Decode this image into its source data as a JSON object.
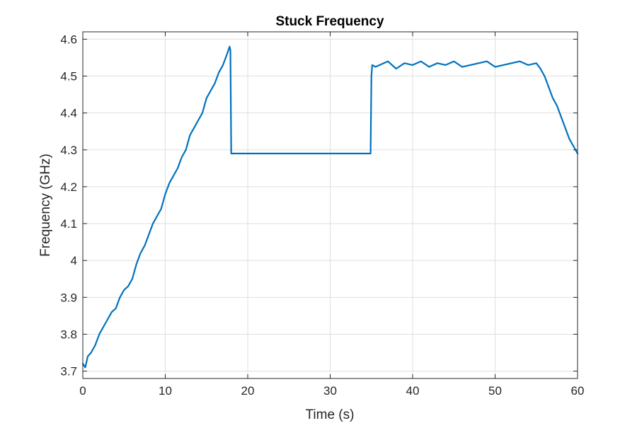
{
  "chart_data": {
    "type": "line",
    "title": "Stuck Frequency",
    "xlabel": "Time (s)",
    "ylabel": "Frequency (GHz)",
    "xlim": [
      0,
      60
    ],
    "ylim": [
      3.68,
      4.62
    ],
    "xticks": [
      0,
      10,
      20,
      30,
      40,
      50,
      60
    ],
    "xtick_labels": [
      "0",
      "10",
      "20",
      "30",
      "40",
      "50",
      "60"
    ],
    "yticks": [
      3.7,
      3.8,
      3.9,
      4.0,
      4.1,
      4.2,
      4.3,
      4.4,
      4.5,
      4.6
    ],
    "ytick_labels": [
      "3.7",
      "3.8",
      "3.9",
      "4",
      "4.1",
      "4.2",
      "4.3",
      "4.4",
      "4.5",
      "4.6"
    ],
    "grid": true,
    "legend": "none",
    "series": [
      {
        "color": "#0072BD",
        "x": [
          0,
          0.3,
          0.6,
          1,
          1.5,
          2,
          2.5,
          3,
          3.5,
          4,
          4.5,
          5,
          5.5,
          6,
          6.5,
          7,
          7.5,
          8,
          8.5,
          9,
          9.5,
          10,
          10.5,
          11,
          11.5,
          12,
          12.5,
          13,
          13.5,
          14,
          14.5,
          15,
          15.5,
          16,
          16.5,
          17,
          17.5,
          17.8,
          17.9,
          18,
          20,
          25,
          30,
          34.9,
          35,
          35.1,
          35.5,
          36,
          37,
          38,
          39,
          40,
          41,
          42,
          43,
          44,
          45,
          46,
          47,
          48,
          49,
          50,
          51,
          52,
          53,
          54,
          55,
          55.5,
          56,
          56.5,
          57,
          57.5,
          58,
          58.5,
          59,
          59.5,
          60
        ],
        "y": [
          3.72,
          3.71,
          3.74,
          3.75,
          3.77,
          3.8,
          3.82,
          3.84,
          3.86,
          3.87,
          3.9,
          3.92,
          3.93,
          3.95,
          3.99,
          4.02,
          4.04,
          4.07,
          4.1,
          4.12,
          4.14,
          4.18,
          4.21,
          4.23,
          4.25,
          4.28,
          4.3,
          4.34,
          4.36,
          4.38,
          4.4,
          4.44,
          4.46,
          4.48,
          4.51,
          4.53,
          4.56,
          4.58,
          4.57,
          4.29,
          4.29,
          4.29,
          4.29,
          4.29,
          4.5,
          4.53,
          4.525,
          4.53,
          4.54,
          4.52,
          4.535,
          4.53,
          4.54,
          4.525,
          4.535,
          4.53,
          4.54,
          4.525,
          4.53,
          4.535,
          4.54,
          4.525,
          4.53,
          4.535,
          4.54,
          4.53,
          4.535,
          4.52,
          4.5,
          4.47,
          4.44,
          4.42,
          4.39,
          4.36,
          4.33,
          4.31,
          4.29
        ]
      }
    ]
  }
}
